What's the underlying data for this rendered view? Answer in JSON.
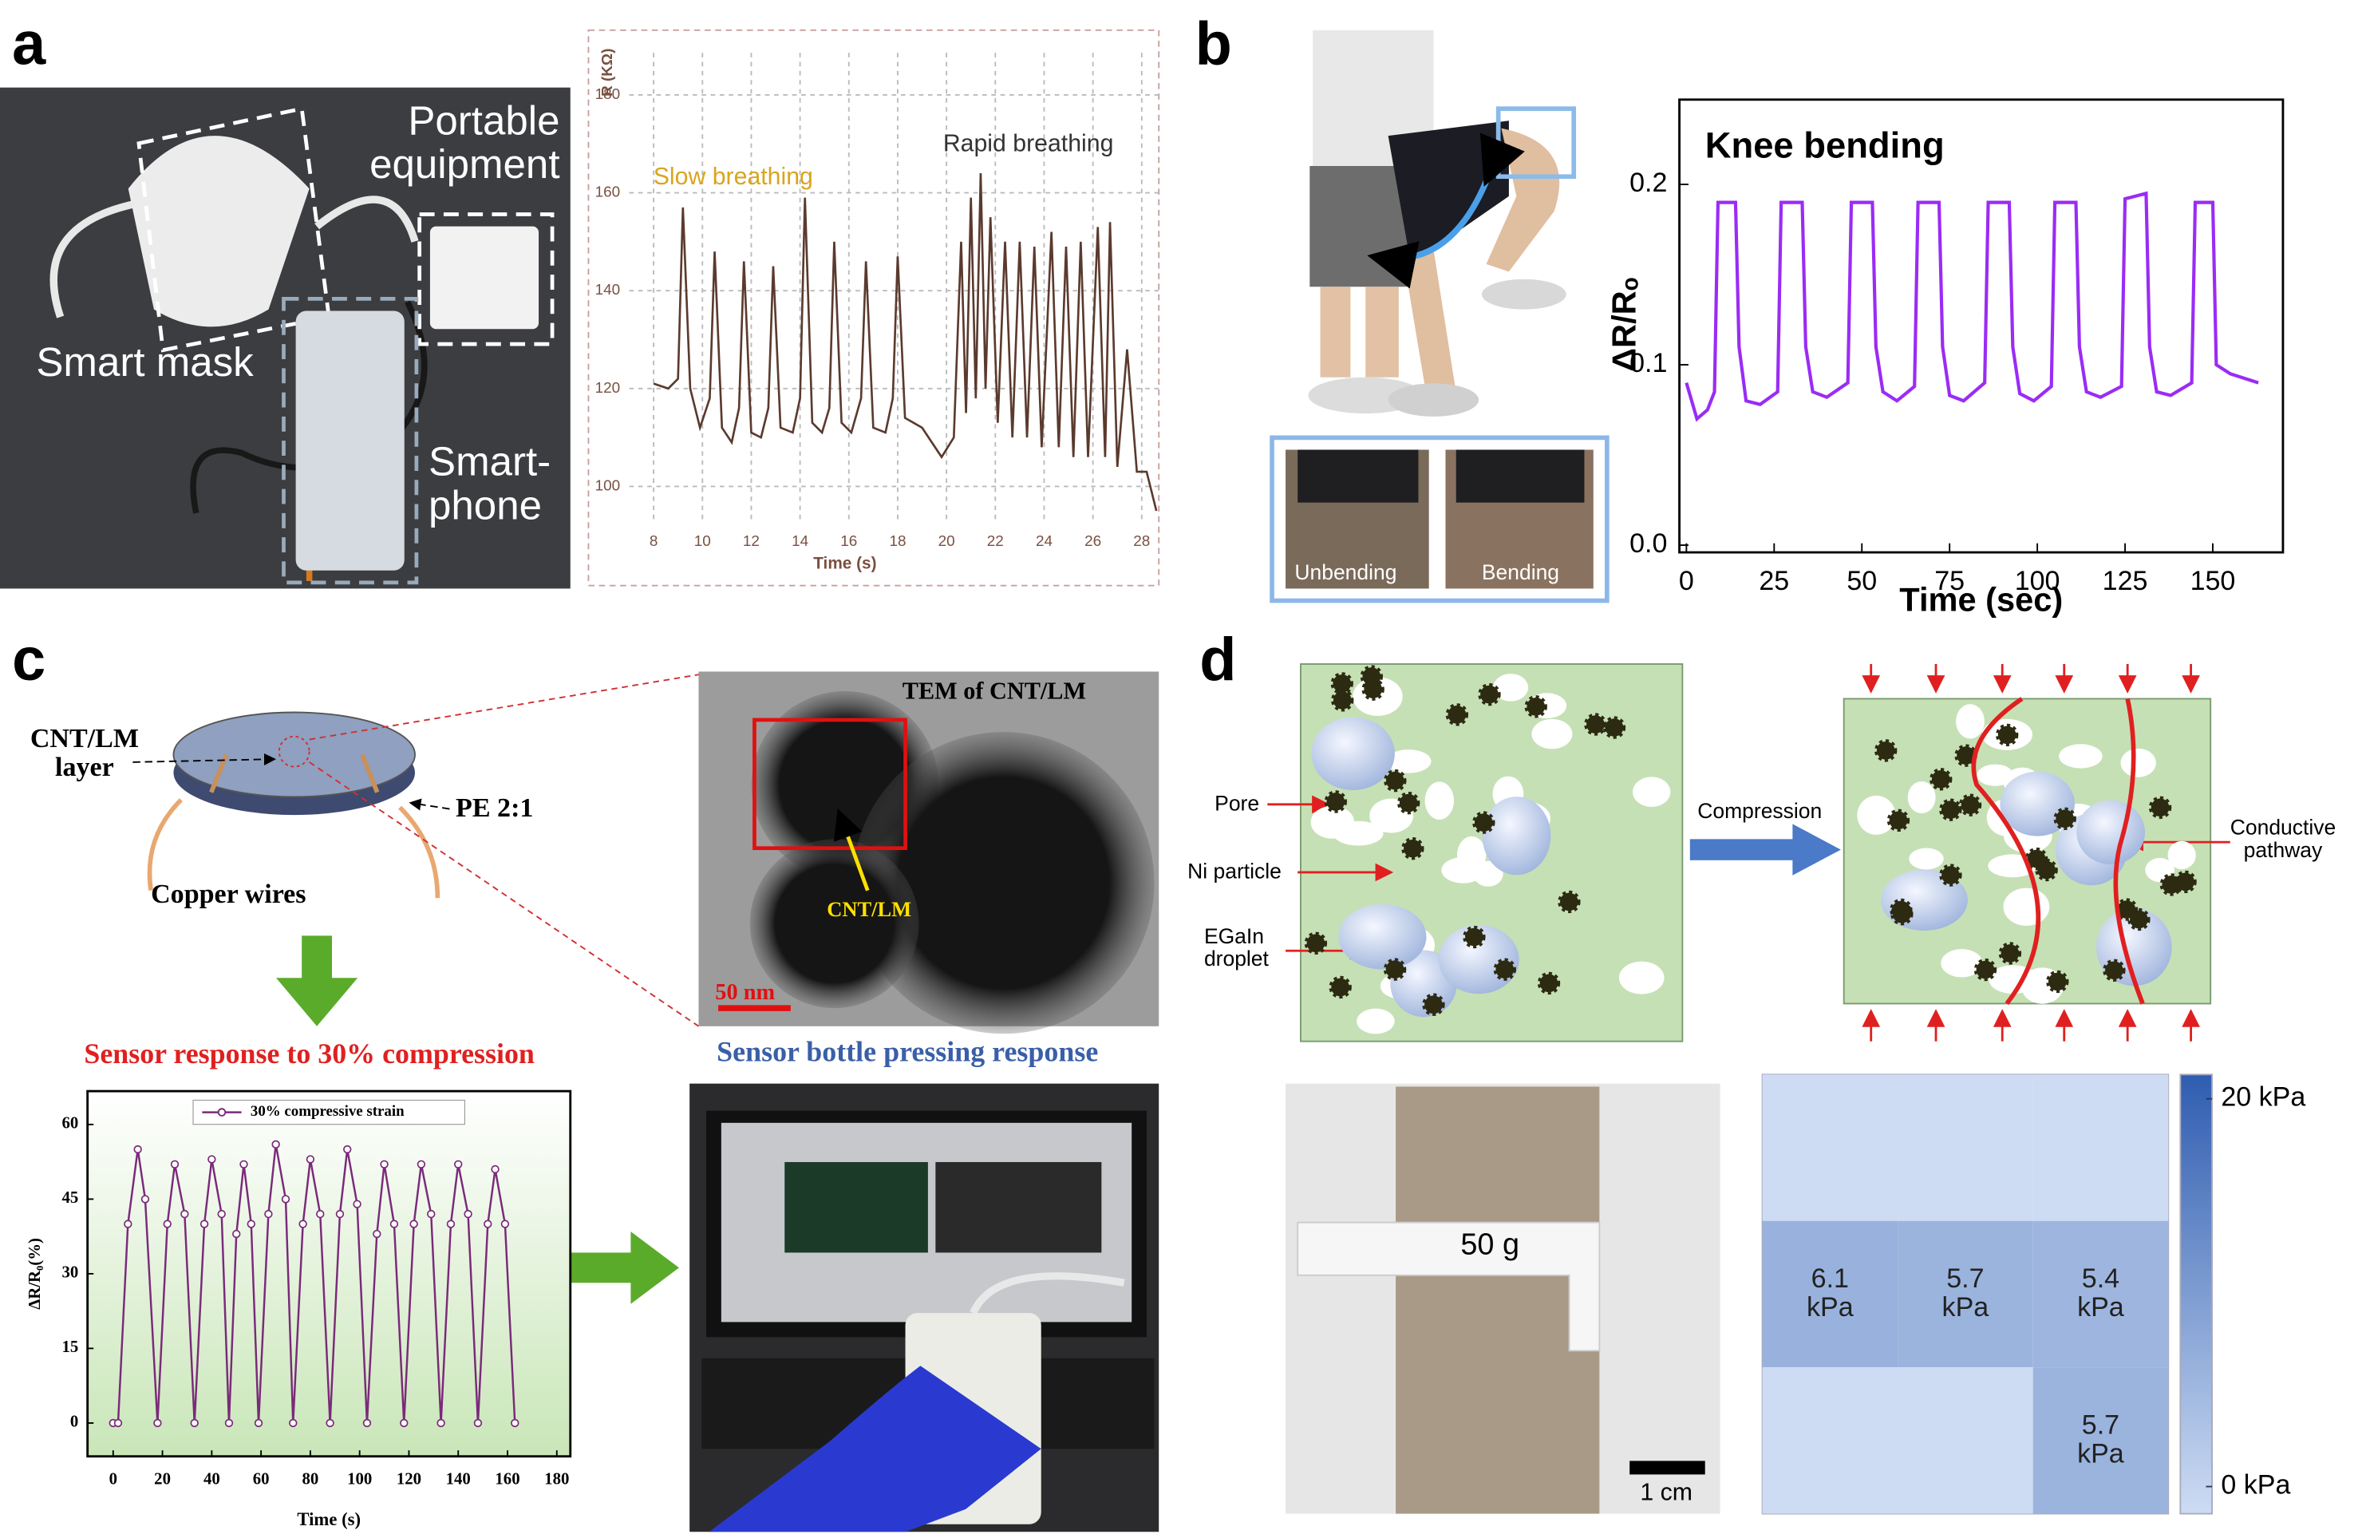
{
  "panel_labels": [
    "a",
    "b",
    "c",
    "d"
  ],
  "panel_a": {
    "photo_labels": [
      "Portable\nequipment",
      "Smart mask",
      "Smart-\nphone"
    ]
  },
  "panel_b": {
    "inset_labels": [
      "Unbending",
      "Bending"
    ]
  },
  "panel_c": {
    "device_labels": [
      "CNT/LM\nlayer",
      "PE 2:1",
      "Copper wires"
    ],
    "tem_title": "TEM of CNT/LM",
    "tem_arrow_label": "CNT/LM",
    "scale_bar": "50 nm",
    "bottle_title": "Sensor bottle pressing response"
  },
  "panel_d": {
    "schematic_labels": [
      "Pore",
      "Ni particle",
      "EGaIn\ndroplet"
    ],
    "compression": "Compression",
    "pathway": "Conductive\npathway",
    "weight": "50 g",
    "scale_bar": "1 cm"
  },
  "chart_data": [
    {
      "type": "line",
      "y_label": "R (KΩ)",
      "x_label": "Time (s)",
      "annotations": [
        "Slow breathing",
        "Rapid breathing"
      ],
      "x": [
        8,
        8.6,
        9.0,
        9.2,
        9.5,
        9.9,
        10.3,
        10.5,
        10.8,
        11.2,
        11.5,
        11.7,
        12.0,
        12.4,
        12.7,
        12.9,
        13.2,
        13.7,
        14.0,
        14.2,
        14.5,
        14.9,
        15.2,
        15.4,
        15.7,
        16.1,
        16.5,
        16.7,
        17.0,
        17.5,
        17.8,
        18.0,
        18.3,
        19.0,
        19.8,
        20.3,
        20.6,
        20.8,
        21.0,
        21.2,
        21.4,
        21.6,
        21.8,
        22.1,
        22.4,
        22.7,
        23.0,
        23.3,
        23.6,
        23.9,
        24.3,
        24.6,
        24.9,
        25.2,
        25.5,
        25.8,
        26.2,
        26.5,
        26.7,
        27.0,
        27.4,
        27.8,
        28.2,
        28.6
      ],
      "series": [
        {
          "color": "#5b3a2e",
          "values": [
            121,
            120,
            122,
            157,
            120,
            112,
            118,
            148,
            112,
            109,
            116,
            146,
            111,
            110,
            116,
            145,
            112,
            111,
            118,
            159,
            113,
            111,
            116,
            150,
            113,
            111,
            118,
            146,
            112,
            111,
            118,
            147,
            114,
            112,
            106,
            110,
            150,
            115,
            159,
            118,
            164,
            120,
            155,
            113,
            150,
            110,
            150,
            110,
            149,
            108,
            152,
            108,
            149,
            106,
            150,
            106,
            153,
            106,
            154,
            104,
            128,
            103,
            103,
            95
          ]
        }
      ],
      "xlim": [
        7,
        28.7
      ],
      "ylim": [
        93,
        188.6
      ],
      "xticks": [
        8,
        10,
        12,
        14,
        16,
        18,
        20,
        22,
        24,
        26,
        28
      ],
      "yticks": [
        100,
        120,
        140,
        160,
        180
      ],
      "grid": true
    },
    {
      "type": "line",
      "title": "Knee bending",
      "y_label": "ΔR/Rₒ",
      "x_label": "Time (sec)",
      "x": [
        0,
        3,
        6,
        8,
        9,
        14,
        15,
        17,
        21,
        26,
        27,
        33,
        34,
        36,
        40,
        46,
        47,
        53,
        54,
        56,
        60,
        65,
        66,
        72,
        73,
        75,
        79,
        85,
        86,
        92,
        93,
        95,
        99,
        104,
        105,
        111,
        112,
        114,
        118,
        124,
        125,
        131,
        132,
        134,
        138,
        144,
        145,
        150,
        151,
        155,
        163
      ],
      "series": [
        {
          "color": "#9a2cf5",
          "values": [
            0.09,
            0.07,
            0.075,
            0.085,
            0.19,
            0.19,
            0.11,
            0.08,
            0.078,
            0.085,
            0.19,
            0.19,
            0.11,
            0.085,
            0.082,
            0.09,
            0.19,
            0.19,
            0.11,
            0.085,
            0.08,
            0.088,
            0.19,
            0.19,
            0.11,
            0.083,
            0.08,
            0.09,
            0.19,
            0.19,
            0.11,
            0.084,
            0.08,
            0.088,
            0.19,
            0.19,
            0.11,
            0.085,
            0.082,
            0.088,
            0.192,
            0.195,
            0.11,
            0.085,
            0.083,
            0.09,
            0.19,
            0.19,
            0.1,
            0.095,
            0.09
          ]
        }
      ],
      "xlim": [
        -2,
        170
      ],
      "ylim": [
        -0.004,
        0.247
      ],
      "xticks": [
        0,
        25,
        50,
        75,
        100,
        125,
        150
      ],
      "yticks": [
        {
          "value": 0,
          "label": "0.0"
        },
        0.1,
        0.2
      ],
      "grid": false
    },
    {
      "type": "line",
      "title": "Sensor response to 30% compression",
      "y_label": "ΔR/R₀(%)",
      "x_label": "Time (s)",
      "x": [
        0,
        2,
        6,
        10,
        13,
        18,
        22,
        25,
        29,
        33,
        37,
        40,
        44,
        47,
        50,
        53,
        56,
        59,
        63,
        66,
        70,
        73,
        77,
        80,
        84,
        88,
        92,
        95,
        99,
        103,
        107,
        110,
        114,
        118,
        122,
        125,
        129,
        133,
        137,
        140,
        144,
        148,
        152,
        155,
        159,
        163
      ],
      "series": [
        {
          "name": "30% compressive strain",
          "color": "#7a2a7a",
          "values": [
            0,
            0,
            40,
            55,
            45,
            0,
            40,
            52,
            42,
            0,
            40,
            53,
            42,
            0,
            38,
            52,
            40,
            0,
            42,
            56,
            45,
            0,
            40,
            53,
            42,
            0,
            42,
            55,
            44,
            0,
            38,
            52,
            40,
            0,
            40,
            52,
            42,
            0,
            40,
            52,
            42,
            0,
            40,
            51,
            40,
            0
          ]
        }
      ],
      "markers": true,
      "legend": "top",
      "xlim": [
        -10.4,
        185.5
      ],
      "ylim": [
        -6.7,
        66.7
      ],
      "xticks": [
        0,
        20,
        40,
        60,
        80,
        100,
        120,
        140,
        160,
        180
      ],
      "yticks": [
        0,
        15,
        30,
        45,
        60
      ],
      "grid": false
    },
    {
      "type": "heatmap",
      "values": [
        [
          null,
          null,
          null
        ],
        [
          6.1,
          5.7,
          5.4
        ],
        [
          null,
          null,
          5.7
        ]
      ],
      "value_labels": [
        [
          null,
          null,
          null
        ],
        [
          "6.1 kPa",
          "5.7 kPa",
          "5.4 kPa"
        ],
        [
          null,
          null,
          "5.7 kPa"
        ]
      ],
      "zlim": [
        -1.4,
        21.25
      ],
      "colormap": [
        "#cddcf3",
        "#2f5db0"
      ],
      "colorbar_ticks": [
        {
          "value": 20,
          "label": "20 kPa"
        },
        {
          "value": 0,
          "label": "0 kPa"
        }
      ]
    }
  ]
}
